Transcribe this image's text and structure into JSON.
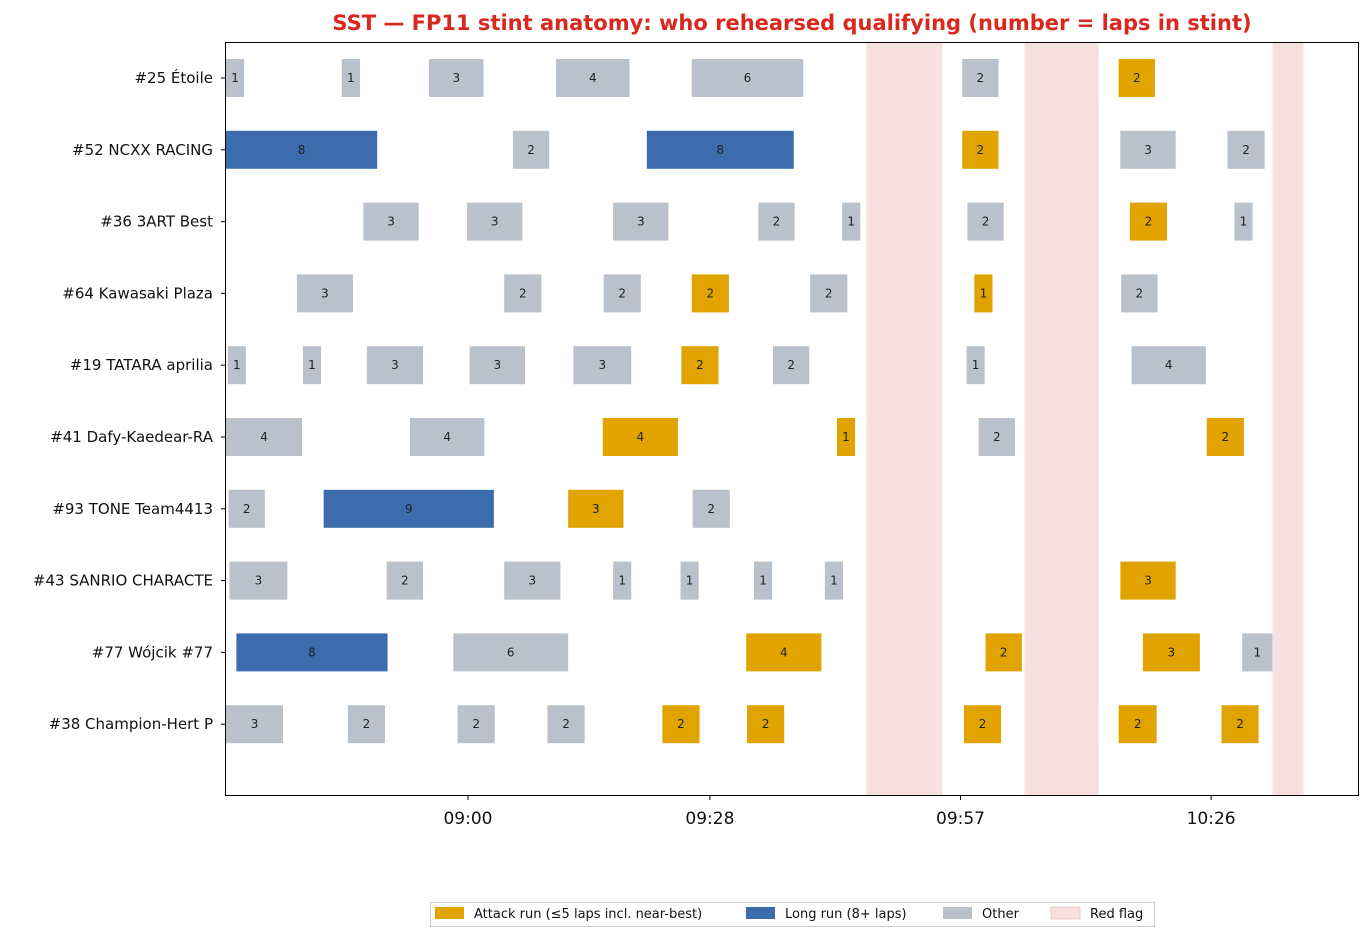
{
  "chart_data": {
    "type": "bar",
    "subtype": "horizontal-gantt",
    "title": "SST — FP11 stint anatomy: who rehearsed qualifying (number = laps in stint)",
    "xlabel": "",
    "ylabel": "",
    "x_unit": "minutes after 08:32",
    "xlim": [
      0,
      131
    ],
    "x_ticks": [
      {
        "value": 28,
        "label": "09:00"
      },
      {
        "value": 56,
        "label": "09:28"
      },
      {
        "value": 85,
        "label": "09:57"
      },
      {
        "value": 114,
        "label": "10:26"
      }
    ],
    "grid": false,
    "legend_position": "bottom-center",
    "colors": {
      "attack": "#E0A300",
      "long": "#3C6CAE",
      "other": "#B9C1CC",
      "red_flag": "#F7E1E0",
      "title": "#D9281E"
    },
    "legend": [
      {
        "key": "attack",
        "label": "Attack run (≤5 laps incl. near-best)"
      },
      {
        "key": "long",
        "label": "Long run (8+ laps)"
      },
      {
        "key": "other",
        "label": "Other"
      },
      {
        "key": "red_flag",
        "label": "Red flag"
      }
    ],
    "red_flags": [
      {
        "start": 74.1,
        "end": 82.9
      },
      {
        "start": 92.4,
        "end": 101.0
      },
      {
        "start": 121.1,
        "end": 124.7
      }
    ],
    "rows": [
      {
        "label": "#25 Étoile",
        "stints": [
          {
            "start": 0,
            "end": 2.1,
            "laps": 1,
            "kind": "other"
          },
          {
            "start": 13.4,
            "end": 15.5,
            "laps": 1,
            "kind": "other"
          },
          {
            "start": 23.5,
            "end": 29.8,
            "laps": 3,
            "kind": "other"
          },
          {
            "start": 38.2,
            "end": 46.7,
            "laps": 4,
            "kind": "other"
          },
          {
            "start": 53.9,
            "end": 66.8,
            "laps": 6,
            "kind": "other"
          },
          {
            "start": 85.2,
            "end": 89.4,
            "laps": 2,
            "kind": "other"
          },
          {
            "start": 103.3,
            "end": 107.5,
            "laps": 2,
            "kind": "attack"
          }
        ]
      },
      {
        "label": "#52 NCXX RACING",
        "stints": [
          {
            "start": 0,
            "end": 17.5,
            "laps": 8,
            "kind": "long"
          },
          {
            "start": 33.2,
            "end": 37.4,
            "laps": 2,
            "kind": "other"
          },
          {
            "start": 48.7,
            "end": 65.7,
            "laps": 8,
            "kind": "long"
          },
          {
            "start": 85.2,
            "end": 89.4,
            "laps": 2,
            "kind": "attack"
          },
          {
            "start": 103.5,
            "end": 109.9,
            "laps": 3,
            "kind": "other"
          },
          {
            "start": 115.9,
            "end": 120.2,
            "laps": 2,
            "kind": "other"
          }
        ]
      },
      {
        "label": "#36 3ART Best",
        "stints": [
          {
            "start": 15.9,
            "end": 22.3,
            "laps": 3,
            "kind": "other"
          },
          {
            "start": 27.9,
            "end": 34.3,
            "laps": 3,
            "kind": "other"
          },
          {
            "start": 44.8,
            "end": 51.2,
            "laps": 3,
            "kind": "other"
          },
          {
            "start": 61.6,
            "end": 65.8,
            "laps": 2,
            "kind": "other"
          },
          {
            "start": 71.3,
            "end": 73.4,
            "laps": 1,
            "kind": "other"
          },
          {
            "start": 85.8,
            "end": 90.0,
            "laps": 2,
            "kind": "other"
          },
          {
            "start": 104.6,
            "end": 108.9,
            "laps": 2,
            "kind": "attack"
          },
          {
            "start": 116.7,
            "end": 118.8,
            "laps": 1,
            "kind": "other"
          }
        ]
      },
      {
        "label": "#64 Kawasaki Plaza",
        "stints": [
          {
            "start": 8.2,
            "end": 14.7,
            "laps": 3,
            "kind": "other"
          },
          {
            "start": 32.2,
            "end": 36.5,
            "laps": 2,
            "kind": "other"
          },
          {
            "start": 43.7,
            "end": 48.0,
            "laps": 2,
            "kind": "other"
          },
          {
            "start": 53.9,
            "end": 58.2,
            "laps": 2,
            "kind": "attack"
          },
          {
            "start": 67.6,
            "end": 71.9,
            "laps": 2,
            "kind": "other"
          },
          {
            "start": 86.6,
            "end": 88.7,
            "laps": 1,
            "kind": "attack"
          },
          {
            "start": 103.6,
            "end": 107.8,
            "laps": 2,
            "kind": "other"
          }
        ]
      },
      {
        "label": "#19 TATARA aprilia",
        "stints": [
          {
            "start": 0.2,
            "end": 2.3,
            "laps": 1,
            "kind": "other"
          },
          {
            "start": 8.9,
            "end": 11.0,
            "laps": 1,
            "kind": "other"
          },
          {
            "start": 16.3,
            "end": 22.8,
            "laps": 3,
            "kind": "other"
          },
          {
            "start": 28.2,
            "end": 34.6,
            "laps": 3,
            "kind": "other"
          },
          {
            "start": 40.2,
            "end": 46.9,
            "laps": 3,
            "kind": "other"
          },
          {
            "start": 52.7,
            "end": 57.0,
            "laps": 2,
            "kind": "attack"
          },
          {
            "start": 63.3,
            "end": 67.5,
            "laps": 2,
            "kind": "other"
          },
          {
            "start": 85.7,
            "end": 87.8,
            "laps": 1,
            "kind": "other"
          },
          {
            "start": 104.8,
            "end": 113.4,
            "laps": 4,
            "kind": "other"
          }
        ]
      },
      {
        "label": "#41 Dafy-Kaedear-RA",
        "stints": [
          {
            "start": 0,
            "end": 8.8,
            "laps": 4,
            "kind": "other"
          },
          {
            "start": 21.3,
            "end": 29.9,
            "laps": 4,
            "kind": "other"
          },
          {
            "start": 43.6,
            "end": 52.3,
            "laps": 4,
            "kind": "attack"
          },
          {
            "start": 70.7,
            "end": 72.8,
            "laps": 1,
            "kind": "attack"
          },
          {
            "start": 87.1,
            "end": 91.3,
            "laps": 2,
            "kind": "other"
          },
          {
            "start": 113.5,
            "end": 117.8,
            "laps": 2,
            "kind": "attack"
          }
        ]
      },
      {
        "label": "#93 TONE Team4413",
        "stints": [
          {
            "start": 0.3,
            "end": 4.5,
            "laps": 2,
            "kind": "other"
          },
          {
            "start": 11.3,
            "end": 31.0,
            "laps": 9,
            "kind": "long"
          },
          {
            "start": 39.6,
            "end": 46.0,
            "laps": 3,
            "kind": "attack"
          },
          {
            "start": 54.0,
            "end": 58.3,
            "laps": 2,
            "kind": "other"
          }
        ]
      },
      {
        "label": "#43 SANRIO CHARACTE",
        "stints": [
          {
            "start": 0.4,
            "end": 7.1,
            "laps": 3,
            "kind": "other"
          },
          {
            "start": 18.6,
            "end": 22.8,
            "laps": 2,
            "kind": "other"
          },
          {
            "start": 32.2,
            "end": 38.7,
            "laps": 3,
            "kind": "other"
          },
          {
            "start": 44.8,
            "end": 46.9,
            "laps": 1,
            "kind": "other"
          },
          {
            "start": 52.6,
            "end": 54.7,
            "laps": 1,
            "kind": "other"
          },
          {
            "start": 61.1,
            "end": 63.2,
            "laps": 1,
            "kind": "other"
          },
          {
            "start": 69.3,
            "end": 71.4,
            "laps": 1,
            "kind": "other"
          },
          {
            "start": 103.5,
            "end": 109.9,
            "laps": 3,
            "kind": "attack"
          }
        ]
      },
      {
        "label": "#77 Wójcik #77",
        "stints": [
          {
            "start": 1.2,
            "end": 18.7,
            "laps": 8,
            "kind": "long"
          },
          {
            "start": 26.3,
            "end": 39.6,
            "laps": 6,
            "kind": "other"
          },
          {
            "start": 60.2,
            "end": 68.9,
            "laps": 4,
            "kind": "attack"
          },
          {
            "start": 87.9,
            "end": 92.1,
            "laps": 2,
            "kind": "attack"
          },
          {
            "start": 106.1,
            "end": 112.7,
            "laps": 3,
            "kind": "attack"
          },
          {
            "start": 117.6,
            "end": 121.1,
            "laps": 1,
            "kind": "other"
          }
        ]
      },
      {
        "label": "#38 Champion-Hert P",
        "stints": [
          {
            "start": 0,
            "end": 6.6,
            "laps": 3,
            "kind": "other"
          },
          {
            "start": 14.1,
            "end": 18.4,
            "laps": 2,
            "kind": "other"
          },
          {
            "start": 26.8,
            "end": 31.1,
            "laps": 2,
            "kind": "other"
          },
          {
            "start": 37.2,
            "end": 41.5,
            "laps": 2,
            "kind": "other"
          },
          {
            "start": 50.5,
            "end": 54.8,
            "laps": 2,
            "kind": "attack"
          },
          {
            "start": 60.3,
            "end": 64.6,
            "laps": 2,
            "kind": "attack"
          },
          {
            "start": 85.4,
            "end": 89.7,
            "laps": 2,
            "kind": "attack"
          },
          {
            "start": 103.3,
            "end": 107.7,
            "laps": 2,
            "kind": "attack"
          },
          {
            "start": 115.2,
            "end": 119.5,
            "laps": 2,
            "kind": "attack"
          }
        ]
      }
    ]
  }
}
